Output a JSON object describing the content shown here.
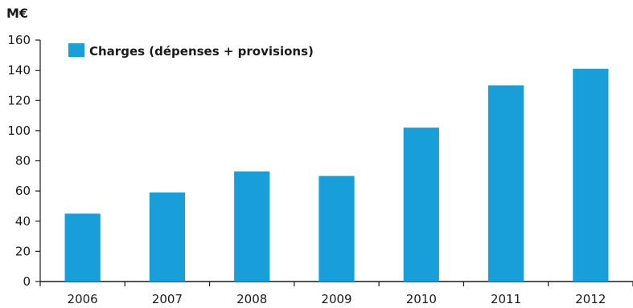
{
  "chart_data": {
    "type": "bar",
    "ylabel": "M€",
    "categories": [
      "2006",
      "2007",
      "2008",
      "2009",
      "2010",
      "2011",
      "2012"
    ],
    "series": [
      {
        "name": "Charges (dépenses + provisions)",
        "color": "#189fda",
        "values": [
          45,
          59,
          73,
          70,
          102,
          130,
          141
        ]
      }
    ],
    "ylim": [
      0,
      160
    ],
    "yticks": [
      0,
      20,
      40,
      60,
      80,
      100,
      120,
      140,
      160
    ],
    "grid": false,
    "legend_position": "top-left"
  }
}
